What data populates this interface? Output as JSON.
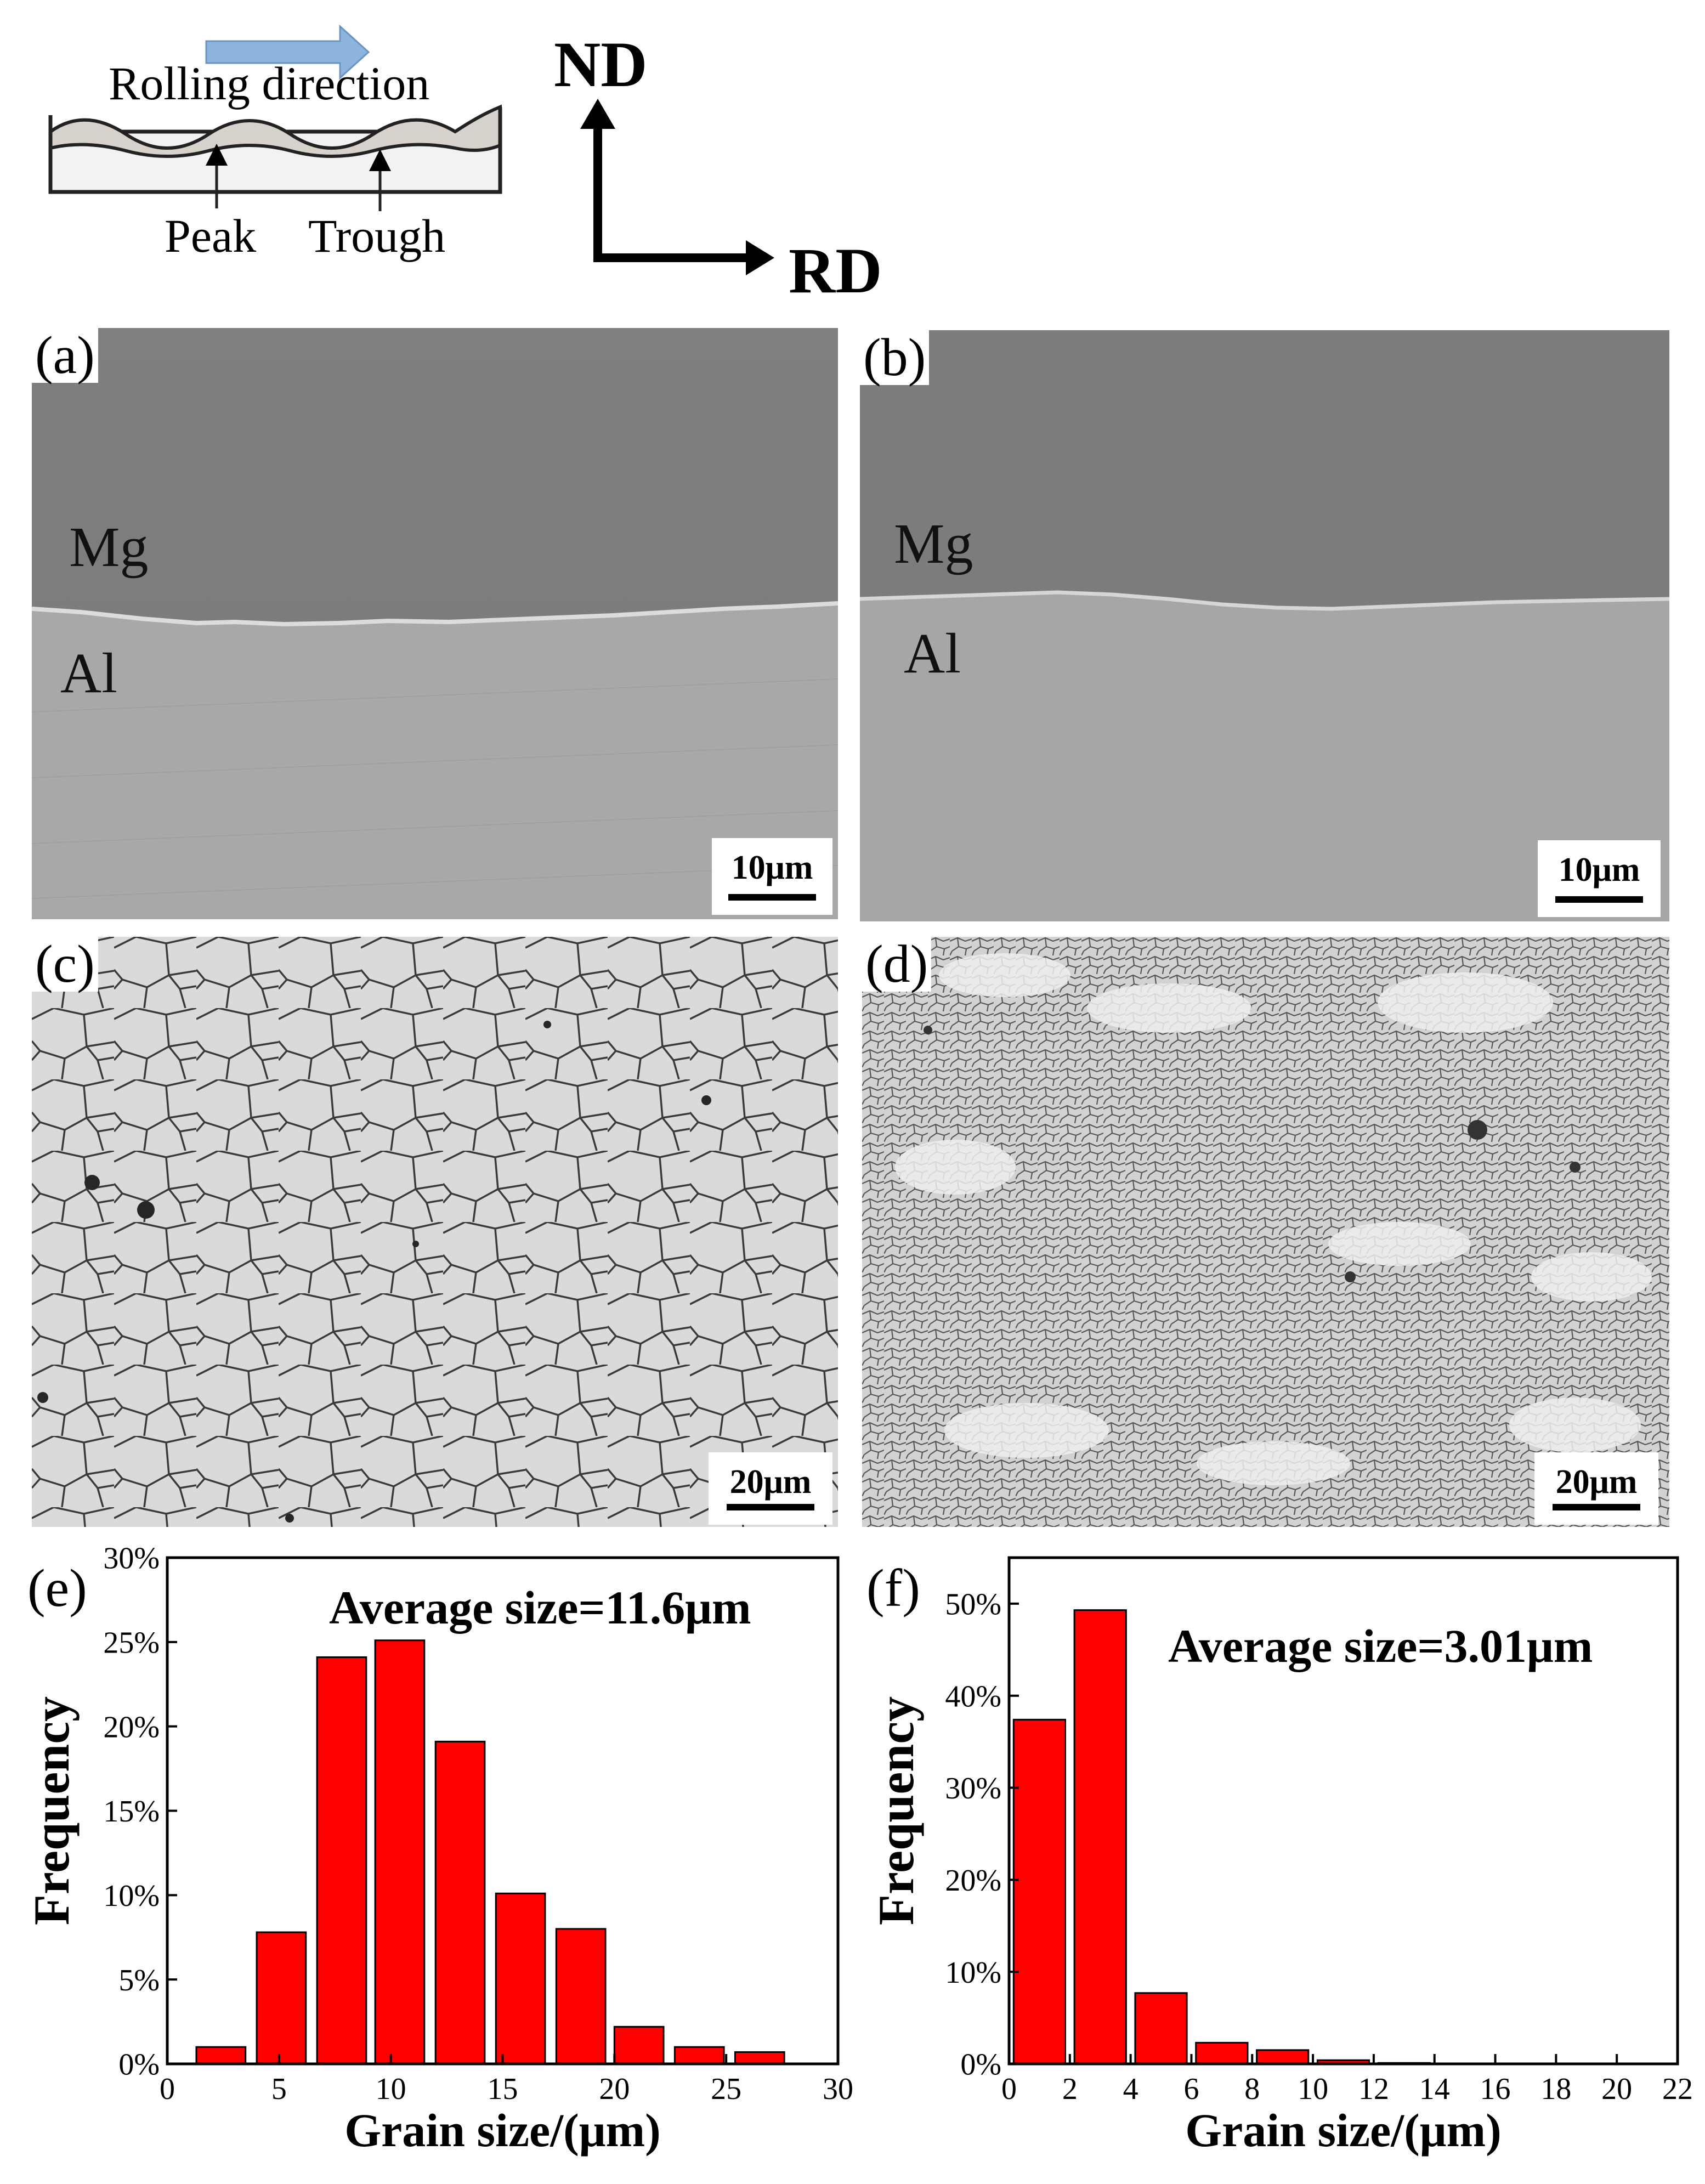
{
  "schematic": {
    "rolling_direction": "Rolling direction",
    "peak": "Peak",
    "trough": "Trough"
  },
  "axes_indicator": {
    "nd": "ND",
    "rd": "RD"
  },
  "panels": {
    "a": {
      "label": "(a)",
      "top_phase": "Mg",
      "bottom_phase": "Al",
      "scale": "10μm"
    },
    "b": {
      "label": "(b)",
      "top_phase": "Mg",
      "bottom_phase": "Al",
      "scale": "10μm"
    },
    "c": {
      "label": "(c)",
      "scale": "20μm"
    },
    "d": {
      "label": "(d)",
      "scale": "20μm"
    },
    "e": {
      "label": "(e)"
    },
    "f": {
      "label": "(f)"
    }
  },
  "colors": {
    "bar": "#ff0000",
    "arrow": "#8db4de",
    "micro_gray": "#8c8c8c"
  },
  "chart_data": [
    {
      "id": "e",
      "type": "bar",
      "annotation": "Average size=11.6μm",
      "xlabel": "Grain size/(μm)",
      "ylabel": "Frequency",
      "xlim": [
        0,
        30
      ],
      "ylim": [
        0,
        30
      ],
      "xticks": [
        "0",
        "5",
        "10",
        "15",
        "20",
        "25",
        "30"
      ],
      "yticks": [
        "0%",
        "5%",
        "10%",
        "15%",
        "20%",
        "25%",
        "30%"
      ],
      "bar_width": 2.2,
      "x": [
        2.4,
        5.1,
        7.8,
        10.4,
        13.1,
        15.8,
        18.5,
        21.1,
        23.8,
        26.5
      ],
      "values": [
        1.0,
        7.8,
        24.1,
        25.1,
        19.1,
        10.1,
        8.0,
        2.2,
        1.0,
        0.7
      ]
    },
    {
      "id": "f",
      "type": "bar",
      "annotation": "Average size=3.01μm",
      "xlabel": "Grain size/(μm)",
      "ylabel": "Frequency",
      "xlim": [
        0,
        22
      ],
      "ylim": [
        0,
        55
      ],
      "xticks": [
        "0",
        "2",
        "4",
        "6",
        "8",
        "10",
        "12",
        "14",
        "16",
        "18",
        "20",
        "22"
      ],
      "yticks": [
        "0%",
        "10%",
        "20%",
        "30%",
        "40%",
        "50%"
      ],
      "bar_width": 1.7,
      "x": [
        1.0,
        3.0,
        5.0,
        7.0,
        9.0,
        11.0,
        13.0
      ],
      "values": [
        37.4,
        49.3,
        7.7,
        2.3,
        1.5,
        0.4,
        0.1
      ]
    }
  ]
}
